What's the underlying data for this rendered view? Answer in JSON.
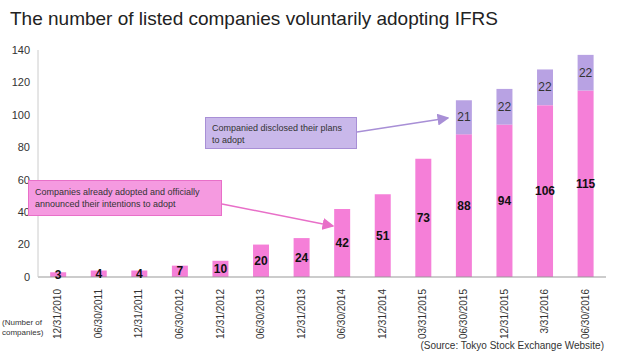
{
  "chart_data": {
    "type": "bar",
    "title": "The number of listed companies voluntarily adopting IFRS",
    "y_label": "(Number of companies)",
    "source": "(Source: Tokyo Stock Exchange Website)",
    "categories": [
      "12/31/2010",
      "06/30/2011",
      "12/31/2011",
      "06/30/2012",
      "12/31/2012",
      "06/30/2013",
      "12/31/2013",
      "06/30/2014",
      "12/31/2014",
      "03/31/2015",
      "06/30/2015",
      "12/31/2015",
      "3/31/2016",
      "06/30/2016"
    ],
    "series": [
      {
        "name": "Companies already adopted and officially announced their intentions to adopt",
        "color": "#f57fd8",
        "values": [
          3,
          4,
          4,
          7,
          10,
          20,
          24,
          42,
          51,
          73,
          88,
          94,
          106,
          115
        ]
      },
      {
        "name": "Companied disclosed their plans to adopt",
        "color": "#b8a2e3",
        "values": [
          null,
          null,
          null,
          null,
          null,
          null,
          null,
          null,
          null,
          null,
          21,
          22,
          22,
          22
        ]
      }
    ],
    "ylim": [
      0,
      140
    ],
    "yticks": [
      0,
      20,
      40,
      60,
      80,
      100,
      120,
      140
    ],
    "grid": false,
    "stacked": true,
    "data_labels": true
  }
}
